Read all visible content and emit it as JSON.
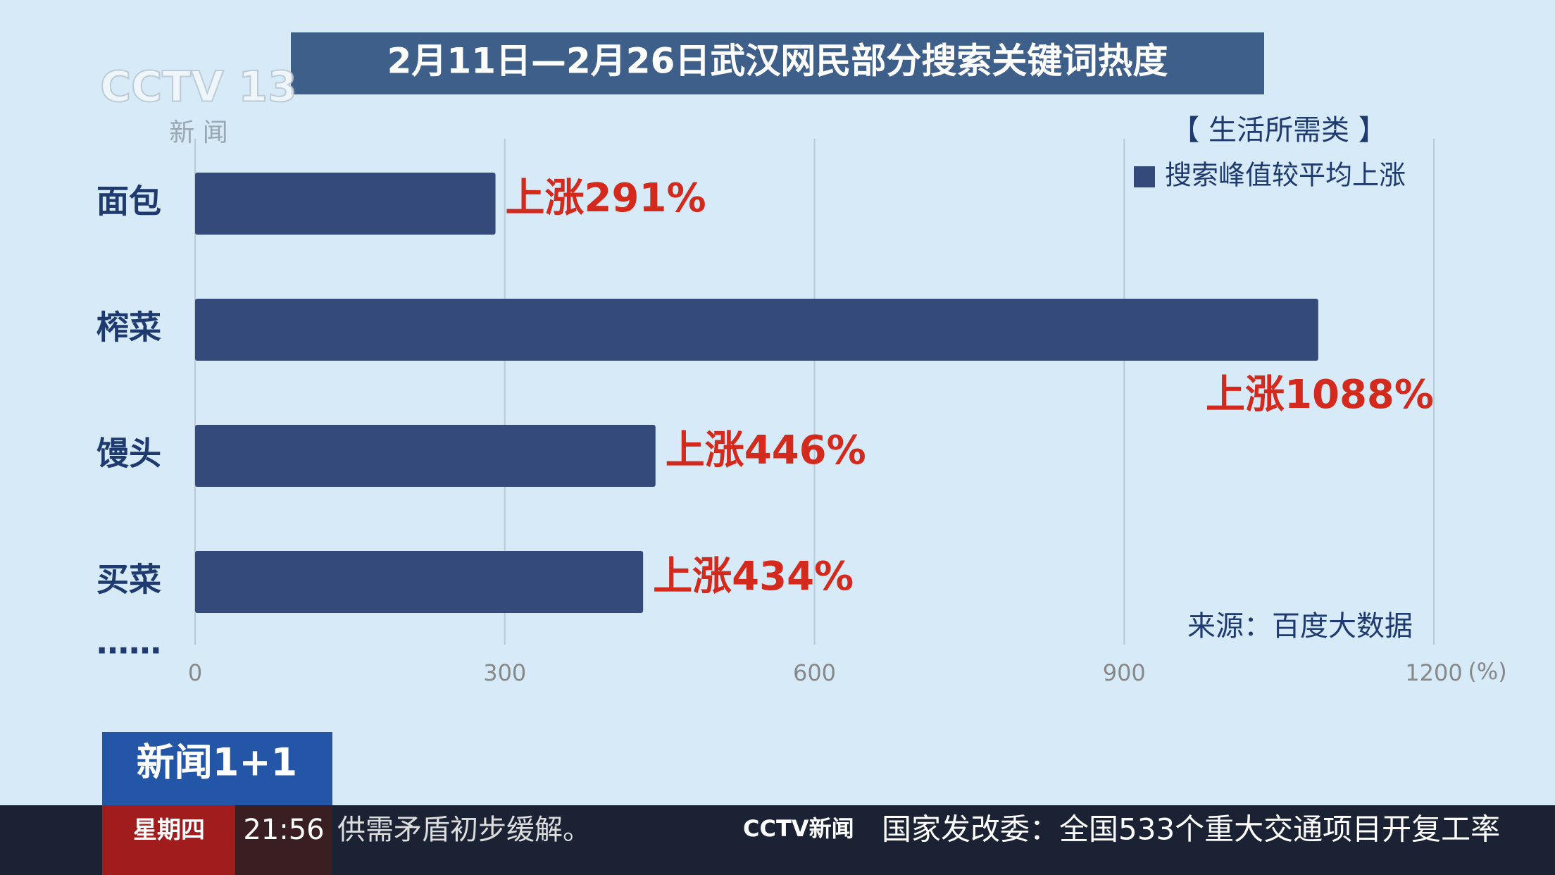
{
  "chart_data": {
    "type": "barh",
    "title": "2月11日—2月26日武汉网民部分搜索关键词热度",
    "subtitle": "【 生活所需类 】",
    "source": "来源：百度大数据",
    "x_label": "(%)",
    "categories": [
      "面包",
      "榨菜",
      "馒头",
      "买菜",
      "……"
    ],
    "series": [
      {
        "name": "搜索峰值较平均上涨",
        "color": "#344a7a",
        "values": [
          291,
          1088,
          446,
          434,
          null
        ],
        "value_labels": [
          "上涨291%",
          "上涨1088%",
          "上涨446%",
          "上涨434%",
          null
        ]
      }
    ],
    "value_label_color": "#d42a1e",
    "xlim": [
      0,
      1200
    ],
    "xticks": [
      0,
      300,
      600,
      900,
      1200
    ],
    "grid": true
  },
  "overlay": {
    "logo": "CCTV 13",
    "channel": "新 闻",
    "program": "新闻1+1",
    "weekday": "星期四",
    "time": "21:56",
    "ticker_left": "供需矛盾初步缓解。",
    "ticker_logo": "CCTV新闻",
    "ticker_right": "国家发改委：全国533个重大交通项目开复工率"
  }
}
